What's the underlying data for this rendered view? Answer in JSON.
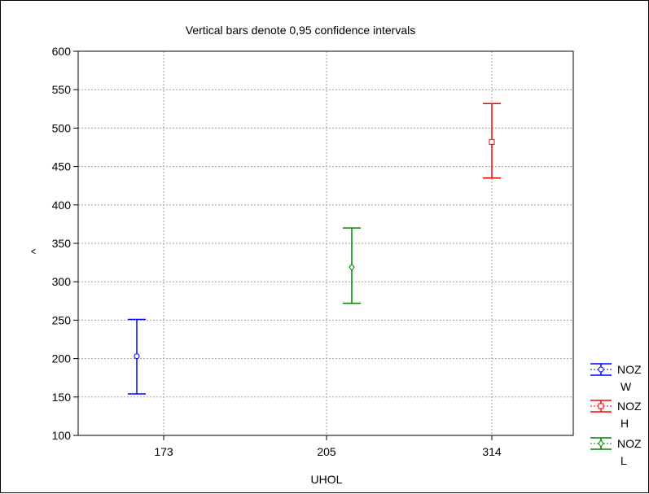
{
  "chart_data": {
    "type": "scatter",
    "title": "Vertical bars denote 0,95 confidence intervals",
    "xlabel": "UHOL",
    "ylabel": "^",
    "categories": [
      "173",
      "205",
      "314"
    ],
    "ylim": [
      100,
      600
    ],
    "yticks": [
      100,
      150,
      200,
      250,
      300,
      350,
      400,
      450,
      500,
      550,
      600
    ],
    "grid": true,
    "legend_placement": "right",
    "series": [
      {
        "name_line1": "NOZ",
        "name_line2": "W",
        "color": "#0000ff",
        "marker": "circle",
        "category": "173",
        "value": 203,
        "lower": 154,
        "upper": 251
      },
      {
        "name_line1": "NOZ",
        "name_line2": "H",
        "color": "#ff0000",
        "marker": "square",
        "category": "314",
        "value": 482,
        "lower": 435,
        "upper": 532
      },
      {
        "name_line1": "NOZ",
        "name_line2": "L",
        "color": "#008000",
        "marker": "diamond",
        "category": "205",
        "value": 319,
        "lower": 272,
        "upper": 370
      }
    ]
  }
}
